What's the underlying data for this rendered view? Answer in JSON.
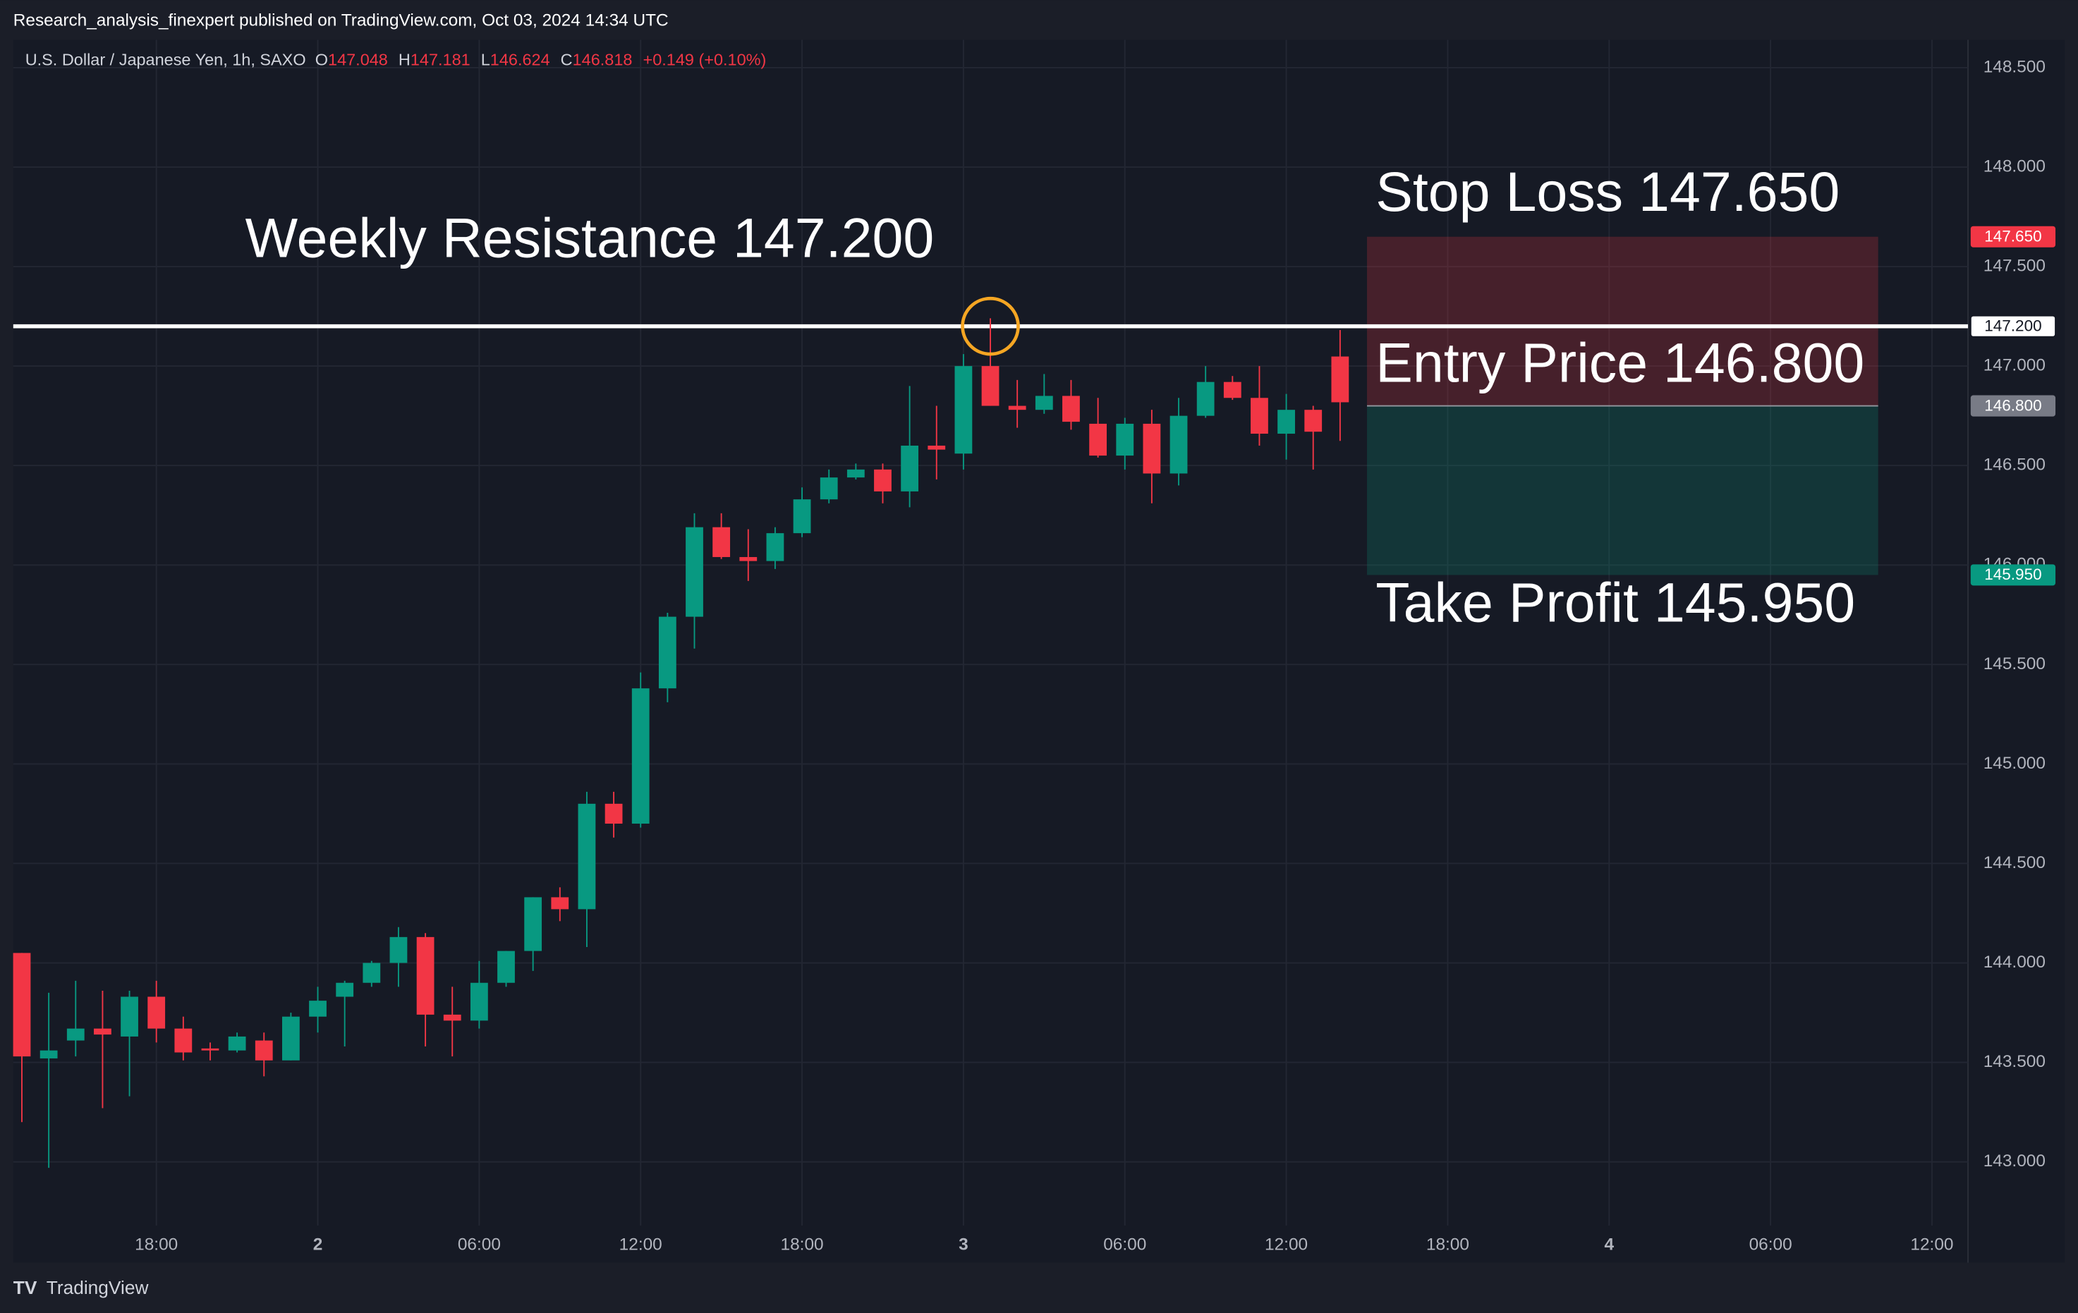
{
  "header": {
    "publisher": "Research_analysis_finexpert published on TradingView.com, Oct 03, 2024 14:34 UTC",
    "logo": "TradingView"
  },
  "chart_data": {
    "type": "candlestick",
    "legend": {
      "symbol": "U.S. Dollar / Japanese Yen, 1h, SAXO",
      "ohlc": [
        {
          "label": "O",
          "value": 147.048
        },
        {
          "label": "H",
          "value": 147.181
        },
        {
          "label": "L",
          "value": 146.624
        },
        {
          "label": "C",
          "value": 146.818
        }
      ],
      "change": "+0.149 (+0.10%)"
    },
    "up_color": "#089981",
    "down_color": "#f23645",
    "grid": true,
    "xlim": [
      12.68,
      85.34
    ],
    "xticks": [
      {
        "value": 18,
        "label": "18:00"
      },
      {
        "value": 24,
        "label": "2"
      },
      {
        "value": 30,
        "label": "06:00"
      },
      {
        "value": 36,
        "label": "12:00"
      },
      {
        "value": 42,
        "label": "18:00"
      },
      {
        "value": 48,
        "label": "3"
      },
      {
        "value": 54,
        "label": "06:00"
      },
      {
        "value": 60,
        "label": "12:00"
      },
      {
        "value": 66,
        "label": "18:00"
      },
      {
        "value": 72,
        "label": "4"
      },
      {
        "value": 78,
        "label": "06:00"
      },
      {
        "value": 84,
        "label": "12:00"
      }
    ],
    "ylim": [
      142.68,
      148.64
    ],
    "yticks": [
      {
        "value": 143,
        "label": "143.000"
      },
      {
        "value": 143.5,
        "label": "143.500"
      },
      {
        "value": 144,
        "label": "144.000"
      },
      {
        "value": 144.5,
        "label": "144.500"
      },
      {
        "value": 145,
        "label": "145.000"
      },
      {
        "value": 145.5,
        "label": "145.500"
      },
      {
        "value": 146,
        "label": "146.000"
      },
      {
        "value": 146.5,
        "label": "146.500"
      },
      {
        "value": 147,
        "label": "147.000"
      },
      {
        "value": 147.5,
        "label": "147.500"
      },
      {
        "value": 148,
        "label": "148.000"
      },
      {
        "value": 148.5,
        "label": "148.500"
      }
    ],
    "candles": [
      {
        "x": 13,
        "open": 144.05,
        "high": 144.05,
        "low": 143.2,
        "close": 143.53
      },
      {
        "x": 14,
        "open": 143.52,
        "high": 143.85,
        "low": 142.97,
        "close": 143.56
      },
      {
        "x": 15,
        "open": 143.61,
        "high": 143.91,
        "low": 143.53,
        "close": 143.67
      },
      {
        "x": 16,
        "open": 143.67,
        "high": 143.86,
        "low": 143.27,
        "close": 143.64
      },
      {
        "x": 17,
        "open": 143.63,
        "high": 143.86,
        "low": 143.33,
        "close": 143.83
      },
      {
        "x": 18,
        "open": 143.83,
        "high": 143.91,
        "low": 143.6,
        "close": 143.67
      },
      {
        "x": 19,
        "open": 143.67,
        "high": 143.73,
        "low": 143.51,
        "close": 143.55
      },
      {
        "x": 20,
        "open": 143.57,
        "high": 143.6,
        "low": 143.51,
        "close": 143.56
      },
      {
        "x": 21,
        "open": 143.56,
        "high": 143.65,
        "low": 143.55,
        "close": 143.63
      },
      {
        "x": 22,
        "open": 143.61,
        "high": 143.65,
        "low": 143.43,
        "close": 143.51
      },
      {
        "x": 23,
        "open": 143.51,
        "high": 143.75,
        "low": 143.51,
        "close": 143.73
      },
      {
        "x": 24,
        "open": 143.73,
        "high": 143.88,
        "low": 143.65,
        "close": 143.81
      },
      {
        "x": 25,
        "open": 143.83,
        "high": 143.91,
        "low": 143.58,
        "close": 143.9
      },
      {
        "x": 26,
        "open": 143.9,
        "high": 144.01,
        "low": 143.88,
        "close": 144.0
      },
      {
        "x": 27,
        "open": 144.0,
        "high": 144.18,
        "low": 143.88,
        "close": 144.13
      },
      {
        "x": 28,
        "open": 144.13,
        "high": 144.15,
        "low": 143.58,
        "close": 143.74
      },
      {
        "x": 29,
        "open": 143.74,
        "high": 143.88,
        "low": 143.53,
        "close": 143.71
      },
      {
        "x": 30,
        "open": 143.71,
        "high": 144.01,
        "low": 143.67,
        "close": 143.9
      },
      {
        "x": 31,
        "open": 143.9,
        "high": 144.06,
        "low": 143.88,
        "close": 144.06
      },
      {
        "x": 32,
        "open": 144.06,
        "high": 144.33,
        "low": 143.96,
        "close": 144.33
      },
      {
        "x": 33,
        "open": 144.33,
        "high": 144.38,
        "low": 144.21,
        "close": 144.27
      },
      {
        "x": 34,
        "open": 144.27,
        "high": 144.86,
        "low": 144.08,
        "close": 144.8
      },
      {
        "x": 35,
        "open": 144.8,
        "high": 144.86,
        "low": 144.63,
        "close": 144.7
      },
      {
        "x": 36,
        "open": 144.7,
        "high": 145.46,
        "low": 144.68,
        "close": 145.38
      },
      {
        "x": 37,
        "open": 145.38,
        "high": 145.76,
        "low": 145.31,
        "close": 145.74
      },
      {
        "x": 38,
        "open": 145.74,
        "high": 146.26,
        "low": 145.58,
        "close": 146.19
      },
      {
        "x": 39,
        "open": 146.19,
        "high": 146.26,
        "low": 146.03,
        "close": 146.04
      },
      {
        "x": 40,
        "open": 146.04,
        "high": 146.18,
        "low": 145.92,
        "close": 146.02
      },
      {
        "x": 41,
        "open": 146.02,
        "high": 146.19,
        "low": 145.98,
        "close": 146.16
      },
      {
        "x": 42,
        "open": 146.16,
        "high": 146.39,
        "low": 146.14,
        "close": 146.33
      },
      {
        "x": 43,
        "open": 146.33,
        "high": 146.48,
        "low": 146.31,
        "close": 146.44
      },
      {
        "x": 44,
        "open": 146.44,
        "high": 146.51,
        "low": 146.43,
        "close": 146.48
      },
      {
        "x": 45,
        "open": 146.48,
        "high": 146.51,
        "low": 146.31,
        "close": 146.37
      },
      {
        "x": 46,
        "open": 146.37,
        "high": 146.9,
        "low": 146.29,
        "close": 146.6
      },
      {
        "x": 47,
        "open": 146.6,
        "high": 146.8,
        "low": 146.43,
        "close": 146.58
      },
      {
        "x": 48,
        "open": 146.56,
        "high": 147.06,
        "low": 146.48,
        "close": 147.0
      },
      {
        "x": 49,
        "open": 147.0,
        "high": 147.24,
        "low": 146.8,
        "close": 146.8
      },
      {
        "x": 50,
        "open": 146.8,
        "high": 146.93,
        "low": 146.69,
        "close": 146.78
      },
      {
        "x": 51,
        "open": 146.78,
        "high": 146.96,
        "low": 146.76,
        "close": 146.85
      },
      {
        "x": 52,
        "open": 146.85,
        "high": 146.93,
        "low": 146.68,
        "close": 146.72
      },
      {
        "x": 53,
        "open": 146.71,
        "high": 146.84,
        "low": 146.54,
        "close": 146.55
      },
      {
        "x": 54,
        "open": 146.55,
        "high": 146.74,
        "low": 146.48,
        "close": 146.71
      },
      {
        "x": 55,
        "open": 146.71,
        "high": 146.78,
        "low": 146.31,
        "close": 146.46
      },
      {
        "x": 56,
        "open": 146.46,
        "high": 146.84,
        "low": 146.4,
        "close": 146.75
      },
      {
        "x": 57,
        "open": 146.75,
        "high": 147.0,
        "low": 146.74,
        "close": 146.92
      },
      {
        "x": 58,
        "open": 146.92,
        "high": 146.95,
        "low": 146.83,
        "close": 146.84
      },
      {
        "x": 59,
        "open": 146.84,
        "high": 147.0,
        "low": 146.6,
        "close": 146.66
      },
      {
        "x": 60,
        "open": 146.66,
        "high": 146.86,
        "low": 146.53,
        "close": 146.78
      },
      {
        "x": 61,
        "open": 146.78,
        "high": 146.8,
        "low": 146.48,
        "close": 146.67
      },
      {
        "x": 62,
        "open": 147.048,
        "high": 147.181,
        "low": 146.624,
        "close": 146.818
      }
    ],
    "resistance": {
      "text": "Weekly Resistance 147.200",
      "value": 147.2,
      "value_label": "147.200",
      "color": "#ffffff",
      "highlight_color": "#f5a623"
    },
    "position": {
      "time_range": [
        63,
        82
      ],
      "stop_loss": {
        "text": "Stop Loss 147.650",
        "value": 147.65,
        "value_label": "147.650",
        "color": "#f23645"
      },
      "entry": {
        "text": "Entry Price 146.800",
        "value": 146.8,
        "value_label": "146.800",
        "color": "#787b86"
      },
      "take_profit": {
        "text": "Take Profit 145.950",
        "value": 145.95,
        "value_label": "145.950",
        "color": "#089981"
      }
    }
  }
}
